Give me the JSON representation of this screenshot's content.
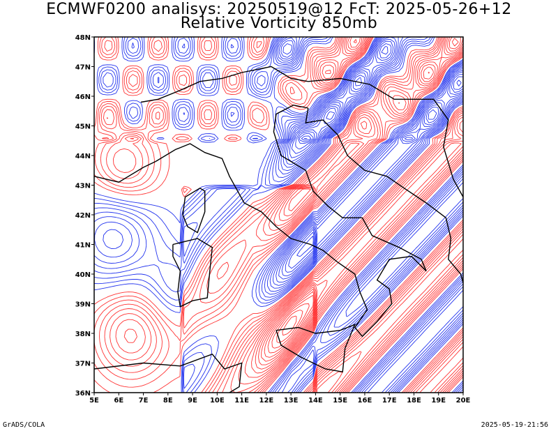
{
  "header": {
    "line1": "ECMWF0200 analisys: 20250519@12 FcT: 2025-05-26+12",
    "line2": "Relative Vorticity 850mb"
  },
  "footer": {
    "left": "GrADS/COLA",
    "right": "2025-05-19-21:56"
  },
  "map": {
    "lon_range": [
      5,
      20
    ],
    "lat_range": [
      36,
      48
    ],
    "x_ticks": [
      "5E",
      "6E",
      "7E",
      "8E",
      "9E",
      "10E",
      "11E",
      "12E",
      "13E",
      "14E",
      "15E",
      "16E",
      "17E",
      "18E",
      "19E",
      "20E"
    ],
    "y_ticks": [
      "36N",
      "37N",
      "38N",
      "39N",
      "40N",
      "41N",
      "42N",
      "43N",
      "44N",
      "45N",
      "46N",
      "47N",
      "48N"
    ],
    "colors": {
      "positive": "#ff3333",
      "negative": "#2233ee",
      "coast": "#000000",
      "frame": "#000000"
    }
  }
}
